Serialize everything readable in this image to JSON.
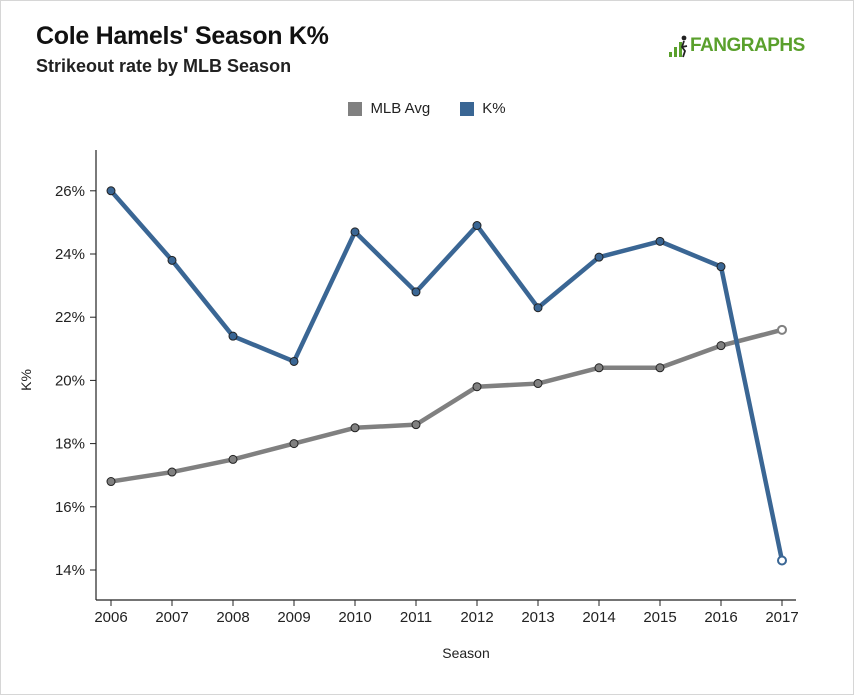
{
  "header": {
    "title": "Cole Hamels' Season K%",
    "subtitle": "Strikeout rate by MLB Season"
  },
  "logo": {
    "text": "FANGRAPHS",
    "color": "#5aa02c"
  },
  "chart_data": {
    "type": "line",
    "title": "Cole Hamels' Season K%",
    "subtitle": "Strikeout rate by MLB Season",
    "xlabel": "Season",
    "ylabel": "K%",
    "categories": [
      "2006",
      "2007",
      "2008",
      "2009",
      "2010",
      "2011",
      "2012",
      "2013",
      "2014",
      "2015",
      "2016",
      "2017"
    ],
    "ylim": [
      13,
      27
    ],
    "yticks": [
      14,
      16,
      18,
      20,
      22,
      24,
      26
    ],
    "ytick_labels": [
      "14%",
      "16%",
      "18%",
      "20%",
      "22%",
      "24%",
      "26%"
    ],
    "grid": false,
    "legend_position": "top-center",
    "series": [
      {
        "name": "MLB Avg",
        "color": "#808080",
        "values": [
          16.8,
          17.1,
          17.5,
          18.0,
          18.5,
          18.6,
          19.8,
          19.9,
          20.4,
          20.4,
          21.1,
          21.6
        ],
        "open_last_point": true
      },
      {
        "name": "K%",
        "color": "#3a6694",
        "values": [
          26.0,
          23.8,
          21.4,
          20.6,
          24.7,
          22.8,
          24.9,
          22.3,
          23.9,
          24.4,
          23.6,
          14.3
        ],
        "open_last_point": true
      }
    ]
  }
}
